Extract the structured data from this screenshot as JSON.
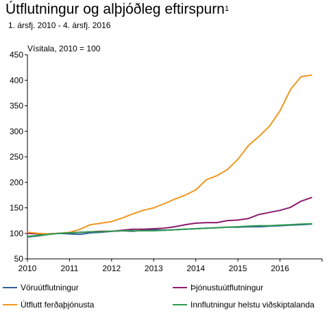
{
  "header": {
    "title": "Útflutningur og alþjóðleg eftirspurn",
    "title_sup": "1",
    "subtitle": "1. ársfj. 2010 - 4. ársfj. 2016",
    "unit_label": "Vísitala, 2010 = 100"
  },
  "chart_data": {
    "type": "line",
    "title": "Útflutningur og alþjóðleg eftirspurn",
    "ylabel": "Vísitala, 2010 = 100",
    "xlabel": "",
    "xlim": [
      2010,
      2017
    ],
    "ylim": [
      50,
      450
    ],
    "yticks": [
      50,
      100,
      150,
      200,
      250,
      300,
      350,
      400,
      450
    ],
    "xticks": [
      2010,
      2011,
      2012,
      2013,
      2014,
      2015,
      2016
    ],
    "grid": false,
    "legend_position": "bottom",
    "x": [
      "2010Q1",
      "2010Q2",
      "2010Q3",
      "2010Q4",
      "2011Q1",
      "2011Q2",
      "2011Q3",
      "2011Q4",
      "2012Q1",
      "2012Q2",
      "2012Q3",
      "2012Q4",
      "2013Q1",
      "2013Q2",
      "2013Q3",
      "2013Q4",
      "2014Q1",
      "2014Q2",
      "2014Q3",
      "2014Q4",
      "2015Q1",
      "2015Q2",
      "2015Q3",
      "2015Q4",
      "2016Q1",
      "2016Q2",
      "2016Q3",
      "2016Q4"
    ],
    "series": [
      {
        "name": "Vöruútflutningur",
        "color": "#2e5d9a",
        "values": [
          93,
          95,
          98,
          100,
          99,
          98,
          101,
          102,
          104,
          105,
          104,
          106,
          107,
          106,
          107,
          108,
          109,
          110,
          111,
          112,
          112,
          113,
          113,
          114,
          115,
          116,
          117,
          118
        ]
      },
      {
        "name": "Þjónustuútflutningur",
        "color": "#8b1a6b",
        "values": [
          100,
          99,
          99,
          100,
          101,
          102,
          103,
          104,
          104,
          106,
          108,
          108,
          109,
          110,
          113,
          117,
          120,
          121,
          121,
          125,
          126,
          129,
          137,
          141,
          145,
          151,
          163,
          170
        ]
      },
      {
        "name": "Útflutt ferðaþjónusta",
        "color": "#f0961e",
        "values": [
          102,
          100,
          99,
          100,
          102,
          108,
          117,
          120,
          123,
          130,
          138,
          145,
          150,
          158,
          167,
          175,
          185,
          205,
          213,
          225,
          245,
          272,
          290,
          310,
          340,
          382,
          407,
          410
        ]
      },
      {
        "name": "Innflutningur helstu viðskiptalanda",
        "color": "#2e9a4e",
        "values": [
          94,
          96,
          98,
          100,
          101,
          102,
          103,
          103,
          104,
          105,
          105,
          105,
          105,
          106,
          107,
          108,
          109,
          110,
          111,
          112,
          113,
          114,
          115,
          115,
          116,
          117,
          118,
          119
        ]
      }
    ]
  }
}
